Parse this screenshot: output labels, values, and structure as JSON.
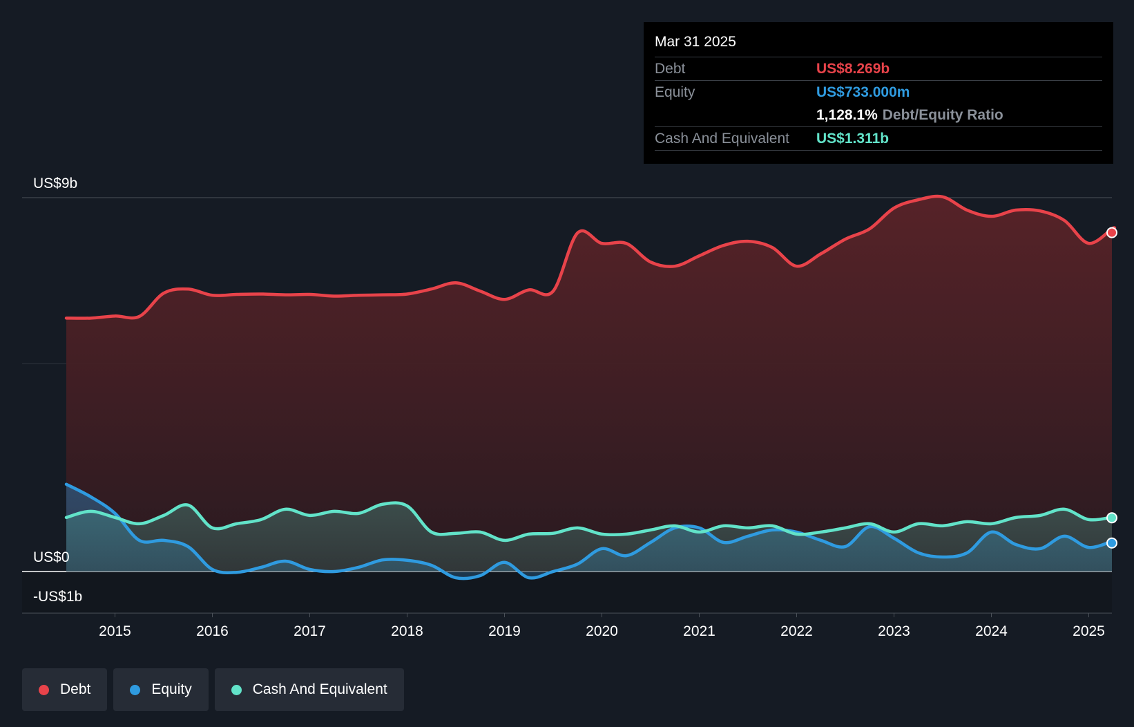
{
  "chart_data": {
    "type": "area",
    "y_unit": "US$b",
    "ylim": [
      -1,
      9
    ],
    "y_tick_labels": [
      {
        "value": 9,
        "label": "US$9b"
      },
      {
        "value": 0,
        "label": "US$0"
      },
      {
        "value": -1,
        "label": "-US$1b"
      }
    ],
    "gridlines": [
      9,
      5,
      0,
      -1
    ],
    "x_range": [
      2014.15,
      2025.5
    ],
    "x_tick_labels": [
      "2015",
      "2016",
      "2017",
      "2018",
      "2019",
      "2020",
      "2021",
      "2022",
      "2023",
      "2024",
      "2025"
    ],
    "x_tick_values": [
      2015,
      2016,
      2017,
      2018,
      2019,
      2020,
      2021,
      2022,
      2023,
      2024,
      2025
    ],
    "series": [
      {
        "name": "Debt",
        "color": "#e8434a",
        "points": [
          [
            2014.5,
            6.1
          ],
          [
            2014.75,
            6.1
          ],
          [
            2015.0,
            6.15
          ],
          [
            2015.25,
            6.14
          ],
          [
            2015.5,
            6.7
          ],
          [
            2015.75,
            6.8
          ],
          [
            2016.0,
            6.65
          ],
          [
            2016.25,
            6.67
          ],
          [
            2016.5,
            6.68
          ],
          [
            2016.75,
            6.66
          ],
          [
            2017.0,
            6.67
          ],
          [
            2017.25,
            6.63
          ],
          [
            2017.5,
            6.65
          ],
          [
            2017.75,
            6.66
          ],
          [
            2018.0,
            6.68
          ],
          [
            2018.25,
            6.8
          ],
          [
            2018.5,
            6.95
          ],
          [
            2018.75,
            6.75
          ],
          [
            2019.0,
            6.55
          ],
          [
            2019.25,
            6.78
          ],
          [
            2019.5,
            6.75
          ],
          [
            2019.75,
            8.15
          ],
          [
            2020.0,
            7.9
          ],
          [
            2020.25,
            7.9
          ],
          [
            2020.5,
            7.45
          ],
          [
            2020.75,
            7.35
          ],
          [
            2021.0,
            7.6
          ],
          [
            2021.25,
            7.85
          ],
          [
            2021.5,
            7.95
          ],
          [
            2021.75,
            7.8
          ],
          [
            2022.0,
            7.35
          ],
          [
            2022.25,
            7.65
          ],
          [
            2022.5,
            8.0
          ],
          [
            2022.75,
            8.25
          ],
          [
            2023.0,
            8.75
          ],
          [
            2023.25,
            8.95
          ],
          [
            2023.5,
            9.02
          ],
          [
            2023.75,
            8.7
          ],
          [
            2024.0,
            8.55
          ],
          [
            2024.25,
            8.7
          ],
          [
            2024.5,
            8.68
          ],
          [
            2024.75,
            8.45
          ],
          [
            2025.0,
            7.9
          ],
          [
            2025.25,
            8.269
          ]
        ]
      },
      {
        "name": "Equity",
        "color": "#2f9be0",
        "points": [
          [
            2014.5,
            2.1
          ],
          [
            2014.75,
            1.8
          ],
          [
            2015.0,
            1.4
          ],
          [
            2015.25,
            0.75
          ],
          [
            2015.5,
            0.75
          ],
          [
            2015.75,
            0.6
          ],
          [
            2016.0,
            0.05
          ],
          [
            2016.25,
            -0.02
          ],
          [
            2016.5,
            0.1
          ],
          [
            2016.75,
            0.25
          ],
          [
            2017.0,
            0.05
          ],
          [
            2017.25,
            0.0
          ],
          [
            2017.5,
            0.1
          ],
          [
            2017.75,
            0.28
          ],
          [
            2018.0,
            0.27
          ],
          [
            2018.25,
            0.15
          ],
          [
            2018.5,
            -0.15
          ],
          [
            2018.75,
            -0.1
          ],
          [
            2019.0,
            0.22
          ],
          [
            2019.25,
            -0.15
          ],
          [
            2019.5,
            0.0
          ],
          [
            2019.75,
            0.18
          ],
          [
            2020.0,
            0.55
          ],
          [
            2020.25,
            0.38
          ],
          [
            2020.5,
            0.7
          ],
          [
            2020.75,
            1.05
          ],
          [
            2021.0,
            1.05
          ],
          [
            2021.25,
            0.7
          ],
          [
            2021.5,
            0.85
          ],
          [
            2021.75,
            1.0
          ],
          [
            2022.0,
            0.95
          ],
          [
            2022.25,
            0.75
          ],
          [
            2022.5,
            0.6
          ],
          [
            2022.75,
            1.08
          ],
          [
            2023.0,
            0.8
          ],
          [
            2023.25,
            0.45
          ],
          [
            2023.5,
            0.35
          ],
          [
            2023.75,
            0.45
          ],
          [
            2024.0,
            0.95
          ],
          [
            2024.25,
            0.65
          ],
          [
            2024.5,
            0.55
          ],
          [
            2024.75,
            0.85
          ],
          [
            2025.0,
            0.58
          ],
          [
            2025.25,
            0.733
          ]
        ]
      },
      {
        "name": "Cash And Equivalent",
        "color": "#62e3c9",
        "points": [
          [
            2014.5,
            1.3
          ],
          [
            2014.75,
            1.45
          ],
          [
            2015.0,
            1.3
          ],
          [
            2015.25,
            1.15
          ],
          [
            2015.5,
            1.35
          ],
          [
            2015.75,
            1.6
          ],
          [
            2016.0,
            1.05
          ],
          [
            2016.25,
            1.15
          ],
          [
            2016.5,
            1.25
          ],
          [
            2016.75,
            1.5
          ],
          [
            2017.0,
            1.35
          ],
          [
            2017.25,
            1.45
          ],
          [
            2017.5,
            1.4
          ],
          [
            2017.75,
            1.62
          ],
          [
            2018.0,
            1.58
          ],
          [
            2018.25,
            0.95
          ],
          [
            2018.5,
            0.92
          ],
          [
            2018.75,
            0.95
          ],
          [
            2019.0,
            0.75
          ],
          [
            2019.25,
            0.9
          ],
          [
            2019.5,
            0.92
          ],
          [
            2019.75,
            1.05
          ],
          [
            2020.0,
            0.9
          ],
          [
            2020.25,
            0.9
          ],
          [
            2020.5,
            1.0
          ],
          [
            2020.75,
            1.1
          ],
          [
            2021.0,
            0.95
          ],
          [
            2021.25,
            1.1
          ],
          [
            2021.5,
            1.05
          ],
          [
            2021.75,
            1.1
          ],
          [
            2022.0,
            0.9
          ],
          [
            2022.25,
            0.95
          ],
          [
            2022.5,
            1.05
          ],
          [
            2022.75,
            1.15
          ],
          [
            2023.0,
            0.95
          ],
          [
            2023.25,
            1.15
          ],
          [
            2023.5,
            1.1
          ],
          [
            2023.75,
            1.2
          ],
          [
            2024.0,
            1.15
          ],
          [
            2024.25,
            1.3
          ],
          [
            2024.5,
            1.35
          ],
          [
            2024.75,
            1.5
          ],
          [
            2025.0,
            1.25
          ],
          [
            2025.25,
            1.311
          ]
        ]
      }
    ]
  },
  "tooltip": {
    "date": "Mar 31 2025",
    "debt_label": "Debt",
    "debt_value": "US$8.269b",
    "equity_label": "Equity",
    "equity_value": "US$733.000m",
    "ratio_value": "1,128.1%",
    "ratio_label": "Debt/Equity Ratio",
    "cash_label": "Cash And Equivalent",
    "cash_value": "US$1.311b"
  },
  "legend": [
    {
      "label": "Debt",
      "color": "#e8434a"
    },
    {
      "label": "Equity",
      "color": "#2f9be0"
    },
    {
      "label": "Cash And Equivalent",
      "color": "#62e3c9"
    }
  ]
}
